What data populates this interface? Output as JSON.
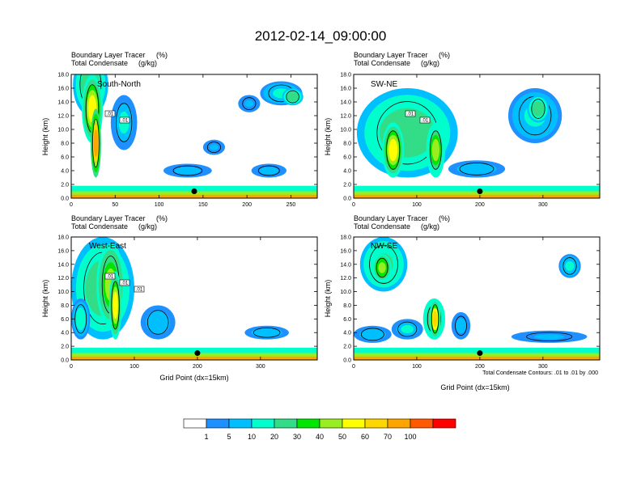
{
  "chart_data": {
    "type": "heatmap",
    "title": "2012-02-14_09:00:00",
    "colorbar": {
      "labels": [
        "1",
        "5",
        "10",
        "20",
        "30",
        "40",
        "50",
        "60",
        "70",
        "100"
      ],
      "colors": [
        "#ffffff",
        "#1e90ff",
        "#00bfff",
        "#00ffcc",
        "#33dd88",
        "#00e600",
        "#99ee22",
        "#ffff00",
        "#ffd700",
        "#ffa500",
        "#ff5a00",
        "#ff0000"
      ]
    },
    "contour_note": "Total Condensate Contours: .01 to .01 by .000",
    "panels": [
      {
        "tag": "South-North",
        "line1_left": "Boundary Layer Tracer",
        "line1_right": "(%)",
        "line2_left": "Total Condensate",
        "line2_right": "(g/kg)",
        "ylabel": "Height (km)",
        "xlabel": "",
        "xlim": [
          0,
          280
        ],
        "ylim": [
          0,
          18
        ],
        "xticks": [
          "0",
          "50",
          "100",
          "150",
          "200",
          "250"
        ],
        "xtick_values": [
          0,
          50,
          100,
          150,
          200,
          250
        ],
        "yticks": [
          "0.0",
          "2.0",
          "4.0",
          "6.0",
          "8.0",
          "10.0",
          "12.0",
          "14.0",
          "16.0",
          "18.0"
        ],
        "marker_x": 140,
        "contour_labels": [
          ".01",
          ".01"
        ],
        "blobs": [
          {
            "x": 2,
            "y": 12,
            "w": 40,
            "h": 9,
            "v": 30
          },
          {
            "x": 12,
            "y": 8,
            "w": 24,
            "h": 10,
            "v": 60
          },
          {
            "x": 22,
            "y": 3,
            "w": 12,
            "h": 10,
            "v": 90
          },
          {
            "x": 45,
            "y": 7,
            "w": 30,
            "h": 8,
            "v": 12
          },
          {
            "x": 215,
            "y": 13.5,
            "w": 48,
            "h": 3.5,
            "v": 14
          },
          {
            "x": 240,
            "y": 13.5,
            "w": 24,
            "h": 2.5,
            "v": 32
          },
          {
            "x": 150,
            "y": 6.3,
            "w": 25,
            "h": 2.2,
            "v": 6
          },
          {
            "x": 190,
            "y": 12.5,
            "w": 25,
            "h": 2.5,
            "v": 6
          },
          {
            "x": 105,
            "y": 3,
            "w": 55,
            "h": 2,
            "v": 8
          },
          {
            "x": 205,
            "y": 3,
            "w": 40,
            "h": 2,
            "v": 8
          }
        ]
      },
      {
        "tag": "SW-NE",
        "line1_left": "Boundary Layer Tracer",
        "line1_right": "(%)",
        "line2_left": "Total Condensate",
        "line2_right": "(g/kg)",
        "ylabel": "Height (km)",
        "xlabel": "",
        "xlim": [
          0,
          390
        ],
        "ylim": [
          0,
          18
        ],
        "xticks": [
          "0",
          "100",
          "200",
          "300"
        ],
        "xtick_values": [
          0,
          100,
          200,
          300
        ],
        "yticks": [
          "0.0",
          "2.0",
          "4.0",
          "6.0",
          "8.0",
          "10.0",
          "12.0",
          "14.0",
          "16.0",
          "18.0"
        ],
        "marker_x": 200,
        "contour_labels": [
          ".01",
          ".01"
        ],
        "blobs": [
          {
            "x": 5,
            "y": 3,
            "w": 160,
            "h": 13,
            "v": 32
          },
          {
            "x": 45,
            "y": 3,
            "w": 35,
            "h": 8,
            "v": 62
          },
          {
            "x": 115,
            "y": 3,
            "w": 30,
            "h": 8,
            "v": 48
          },
          {
            "x": 245,
            "y": 8,
            "w": 85,
            "h": 8,
            "v": 14
          },
          {
            "x": 275,
            "y": 11,
            "w": 35,
            "h": 4,
            "v": 35
          },
          {
            "x": 150,
            "y": 3,
            "w": 90,
            "h": 2.5,
            "v": 10
          }
        ]
      },
      {
        "tag": "West-East",
        "line1_left": "Boundary Layer Tracer",
        "line1_right": "(%)",
        "line2_left": "Total Condensate",
        "line2_right": "(g/kg)",
        "ylabel": "Height (km)",
        "xlabel": "Grid Point (dx=15km)",
        "xlim": [
          0,
          390
        ],
        "ylim": [
          0,
          18
        ],
        "xticks": [
          "0",
          "100",
          "200",
          "300"
        ],
        "xtick_values": [
          0,
          100,
          200,
          300
        ],
        "yticks": [
          "0.0",
          "2.0",
          "4.0",
          "6.0",
          "8.0",
          "10.0",
          "12.0",
          "14.0",
          "16.0",
          "18.0"
        ],
        "marker_x": 200,
        "contour_labels": [
          ".01",
          ".01",
          ".01"
        ],
        "blobs": [
          {
            "x": 0,
            "y": 3,
            "w": 100,
            "h": 15,
            "v": 32
          },
          {
            "x": 40,
            "y": 5,
            "w": 45,
            "h": 12,
            "v": 52
          },
          {
            "x": 60,
            "y": 3,
            "w": 20,
            "h": 10,
            "v": 66
          },
          {
            "x": 0,
            "y": 3,
            "w": 30,
            "h": 6,
            "v": 18
          },
          {
            "x": 110,
            "y": 3,
            "w": 55,
            "h": 5,
            "v": 10
          },
          {
            "x": 275,
            "y": 3,
            "w": 70,
            "h": 2,
            "v": 10
          }
        ]
      },
      {
        "tag": "NW-SE",
        "line1_left": "Boundary Layer Tracer",
        "line1_right": "(%)",
        "line2_left": "Total Condensate",
        "line2_right": "(g/kg)",
        "ylabel": "Height (km)",
        "xlabel": "Grid Point (dx=15km)",
        "xlim": [
          0,
          390
        ],
        "ylim": [
          0,
          18
        ],
        "xticks": [
          "0",
          "100",
          "200",
          "300"
        ],
        "xtick_values": [
          0,
          100,
          200,
          300
        ],
        "yticks": [
          "0.0",
          "2.0",
          "4.0",
          "6.0",
          "8.0",
          "10.0",
          "12.0",
          "14.0",
          "16.0",
          "18.0"
        ],
        "marker_x": 200,
        "contour_labels": [],
        "blobs": [
          {
            "x": 10,
            "y": 10,
            "w": 75,
            "h": 8,
            "v": 28
          },
          {
            "x": 30,
            "y": 11.5,
            "w": 30,
            "h": 4,
            "v": 55
          },
          {
            "x": 110,
            "y": 3,
            "w": 35,
            "h": 6,
            "v": 42
          },
          {
            "x": 120,
            "y": 3,
            "w": 18,
            "h": 6,
            "v": 72
          },
          {
            "x": 0,
            "y": 2.5,
            "w": 60,
            "h": 2.5,
            "v": 10
          },
          {
            "x": 60,
            "y": 3,
            "w": 50,
            "h": 3,
            "v": 12
          },
          {
            "x": 155,
            "y": 3,
            "w": 30,
            "h": 4,
            "v": 8
          },
          {
            "x": 325,
            "y": 12,
            "w": 35,
            "h": 3.5,
            "v": 14
          },
          {
            "x": 250,
            "y": 2.5,
            "w": 120,
            "h": 1.8,
            "v": 6
          }
        ]
      }
    ]
  }
}
